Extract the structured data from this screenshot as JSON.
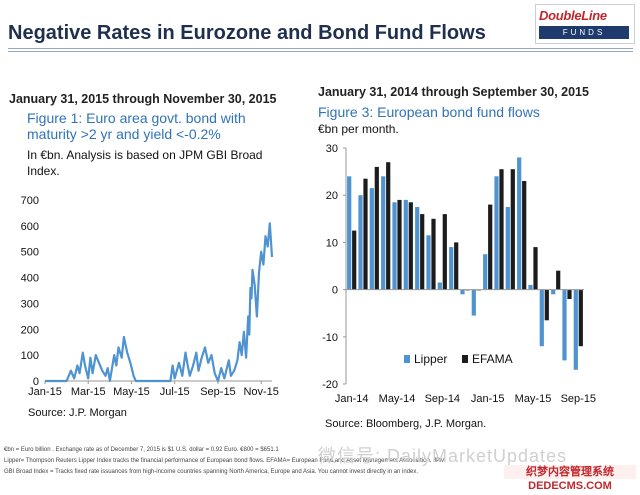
{
  "header": {
    "title": "Negative Rates in Eurozone and Bond Fund Flows",
    "logo_name": "DoubleLine",
    "logo_sub": "FUNDS"
  },
  "footnotes": [
    "€bn = Euro billion . Exchange rate as of December 7, 2015 is $1 U.S. dollar = 0.92 Euro. €800 = $651.1",
    "Lipper= Thompson Reuters Lipper Index tracks the financial performance of European bond flows. EFAMA= European Fund and Asset Management Association. JPM",
    "GBI Broad Index = Tracks fixed rate issuances from high-income countries spanning North America, Europe and Asia. You cannot invest directly in an index."
  ],
  "watermark": "微信号: DailyMarketUpdates",
  "corner_badge": [
    "织梦内容管理系统",
    "DEDECMS.COM"
  ],
  "colors": {
    "lipper": "#4f93d1",
    "efama": "#1c1c1c",
    "line": "#4f93d1",
    "title_blue": "#2f73b9"
  },
  "chart_data": [
    {
      "type": "line",
      "period": "January 31, 2015 through November 30, 2015",
      "title": "Figure 1: Euro area govt. bond with maturity >2 yr and yield <-0.2%",
      "note": "In €bn. Analysis is based on JPM GBI Broad Index.",
      "source": "Source:  J.P. Morgan",
      "ylim": [
        0,
        700
      ],
      "xlim": [
        0,
        10.5
      ],
      "yticks": [
        0,
        100,
        200,
        300,
        400,
        500,
        600,
        700
      ],
      "xticks": [
        {
          "x": 0,
          "label": "Jan-15"
        },
        {
          "x": 2,
          "label": "Mar-15"
        },
        {
          "x": 4,
          "label": "May-15"
        },
        {
          "x": 6,
          "label": "Jul-15"
        },
        {
          "x": 8,
          "label": "Sep-15"
        },
        {
          "x": 10,
          "label": "Nov-15"
        }
      ],
      "x": [
        0,
        0.4,
        0.8,
        1.0,
        1.2,
        1.35,
        1.5,
        1.6,
        1.75,
        1.85,
        2.0,
        2.1,
        2.2,
        2.35,
        2.5,
        2.65,
        2.8,
        2.9,
        3.0,
        3.2,
        3.3,
        3.4,
        3.55,
        3.65,
        3.8,
        3.95,
        4.1,
        4.2,
        4.35,
        4.5,
        4.7,
        5.0,
        5.2,
        5.4,
        5.6,
        5.8,
        5.9,
        6.0,
        6.2,
        6.35,
        6.5,
        6.6,
        6.7,
        6.85,
        7.0,
        7.1,
        7.25,
        7.4,
        7.55,
        7.7,
        7.85,
        8.0,
        8.15,
        8.3,
        8.5,
        8.6,
        8.75,
        8.9,
        9.0,
        9.1,
        9.2,
        9.3,
        9.4,
        9.45,
        9.5,
        9.55,
        9.6,
        9.7,
        9.8,
        9.9,
        10.0,
        10.1,
        10.2,
        10.3,
        10.4,
        10.5
      ],
      "y": [
        0,
        0,
        0,
        0,
        40,
        10,
        60,
        30,
        110,
        60,
        10,
        90,
        30,
        100,
        70,
        40,
        20,
        50,
        0,
        100,
        60,
        130,
        90,
        170,
        110,
        70,
        20,
        0,
        0,
        0,
        0,
        0,
        0,
        0,
        0,
        0,
        60,
        10,
        70,
        20,
        110,
        60,
        20,
        60,
        110,
        40,
        90,
        130,
        70,
        100,
        30,
        0,
        50,
        10,
        80,
        20,
        40,
        80,
        150,
        100,
        190,
        90,
        250,
        180,
        360,
        320,
        430,
        370,
        250,
        420,
        500,
        450,
        560,
        520,
        610,
        480
      ]
    },
    {
      "type": "bar",
      "period": "January 31, 2014 through September 30, 2015",
      "title": "Figure 3: European bond fund flows",
      "ylabel": "€bn per month.",
      "source": "Source:  Bloomberg, J.P. Morgan.",
      "ylim": [
        -20,
        30
      ],
      "yticks": [
        30,
        20,
        10,
        0,
        -10,
        -20
      ],
      "categories": [
        "Jan-14",
        "Feb-14",
        "Mar-14",
        "Apr-14",
        "May-14",
        "Jun-14",
        "Jul-14",
        "Aug-14",
        "Sep-14",
        "Oct-14",
        "Nov-14",
        "Dec-14",
        "Jan-15",
        "Feb-15",
        "Mar-15",
        "Apr-15",
        "May-15",
        "Jun-15",
        "Jul-15",
        "Aug-15",
        "Sep-15"
      ],
      "xtick_labels": [
        {
          "index": 0,
          "label": "Jan-14"
        },
        {
          "index": 4,
          "label": "May-14"
        },
        {
          "index": 8,
          "label": "Sep-14"
        },
        {
          "index": 12,
          "label": "Jan-15"
        },
        {
          "index": 16,
          "label": "May-15"
        },
        {
          "index": 20,
          "label": "Sep-15"
        }
      ],
      "legend": {
        "placement": "bottom-left"
      },
      "series": [
        {
          "name": "Lipper",
          "values": [
            24,
            20,
            21.5,
            24,
            18.5,
            19,
            17.5,
            11.5,
            1.5,
            9,
            -1,
            -5.5,
            7.5,
            24,
            17.5,
            28,
            1,
            -12,
            -1,
            -15,
            -17
          ]
        },
        {
          "name": "EFAMA",
          "values": [
            12.5,
            23.5,
            26,
            27,
            19,
            18.5,
            16,
            15,
            16,
            10,
            0,
            0,
            18,
            25.5,
            25.5,
            23,
            9,
            -6.5,
            4,
            -2,
            -12
          ]
        }
      ]
    }
  ]
}
